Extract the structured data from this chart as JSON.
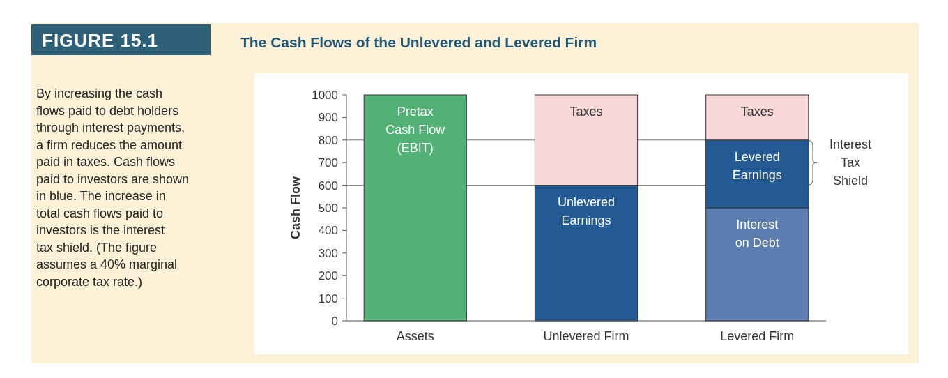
{
  "chart_data": {
    "type": "bar",
    "stacked": true,
    "title": "The Cash Flows of the Unlevered and Levered Firm",
    "ylabel": "Cash Flow",
    "categories": [
      "Assets",
      "Unlevered Firm",
      "Levered Firm"
    ],
    "series": [
      {
        "name": "Pretax Cash Flow (EBIT)",
        "color": "#52b275",
        "values": [
          1000,
          null,
          null
        ]
      },
      {
        "name": "Unlevered Earnings",
        "color": "#245a94",
        "values": [
          null,
          600,
          null
        ]
      },
      {
        "name": "Interest on Debt",
        "color": "#5b7db0",
        "values": [
          null,
          null,
          500
        ]
      },
      {
        "name": "Levered Earnings",
        "color": "#245a94",
        "values": [
          null,
          null,
          300
        ]
      },
      {
        "name": "Taxes",
        "color": "#f8d7d7",
        "values": [
          null,
          400,
          200
        ]
      }
    ],
    "ylim": [
      0,
      1000
    ],
    "yticks": [
      0,
      100,
      200,
      300,
      400,
      500,
      600,
      700,
      800,
      900,
      1000
    ],
    "ref_lines": [
      {
        "axis": "y",
        "value": 800
      },
      {
        "axis": "y",
        "value": 600
      }
    ],
    "legend": false,
    "annotations": [
      "FIGURE 15.1",
      "Interest Tax Shield",
      "By increasing the cash flows paid to debt holders through interest payments, a firm reduces the amount paid in taxes. Cash flows paid to investors are shown in blue. The increase in total cash flows paid to investors is the interest tax shield. (The figure assumes a 40% marginal corporate tax rate.)"
    ]
  }
}
